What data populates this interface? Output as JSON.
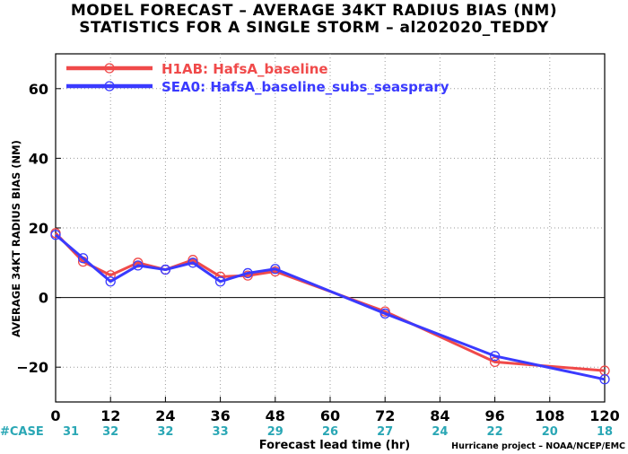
{
  "title_line1": "MODEL FORECAST – AVERAGE 34KT RADIUS BIAS (NM)",
  "title_line2": "STATISTICS FOR A SINGLE STORM – al202020_TEDDY",
  "case_label": "#CASE",
  "credit": "Hurricane project – NOAA/NCEP/EMC",
  "colors": {
    "series1": "#f04a4a",
    "series2": "#3a3aff",
    "case_counts": "#2aa7b5",
    "case_label": "#2aa7b5"
  },
  "chart_data": {
    "type": "line",
    "xlabel": "Forecast lead time (hr)",
    "ylabel": "AVERAGE 34KT RADIUS BIAS (NM)",
    "xlim": [
      0,
      120
    ],
    "ylim": [
      -30,
      70
    ],
    "xticks": [
      0,
      12,
      24,
      36,
      48,
      60,
      72,
      84,
      96,
      108,
      120
    ],
    "yticks": [
      -20,
      0,
      20,
      40,
      60
    ],
    "grid": true,
    "zero_line": true,
    "legend_position": "top-left",
    "case_counts": [
      {
        "x": 0,
        "n": "31"
      },
      {
        "x": 12,
        "n": "32"
      },
      {
        "x": 24,
        "n": "32"
      },
      {
        "x": 36,
        "n": "33"
      },
      {
        "x": 48,
        "n": "29"
      },
      {
        "x": 60,
        "n": "26"
      },
      {
        "x": 72,
        "n": "27"
      },
      {
        "x": 84,
        "n": "24"
      },
      {
        "x": 96,
        "n": "22"
      },
      {
        "x": 108,
        "n": "20"
      },
      {
        "x": 120,
        "n": "18"
      }
    ],
    "series": [
      {
        "name": "H1AB: HafsA_baseline",
        "color": "#f04a4a",
        "x": [
          0,
          6,
          12,
          18,
          24,
          30,
          36,
          42,
          48,
          72,
          96,
          120
        ],
        "y": [
          18.5,
          10.3,
          6.4,
          10.0,
          8.0,
          10.8,
          6.0,
          6.3,
          7.5,
          -4.0,
          -18.5,
          -21.0
        ]
      },
      {
        "name": "SEA0: HafsA_baseline_subs_seasprary",
        "color": "#3a3aff",
        "x": [
          0,
          6,
          12,
          18,
          24,
          30,
          36,
          42,
          48,
          72,
          96,
          120
        ],
        "y": [
          18.0,
          11.3,
          4.6,
          9.2,
          8.0,
          10.0,
          4.6,
          7.0,
          8.2,
          -4.6,
          -16.8,
          -23.5
        ]
      }
    ]
  }
}
